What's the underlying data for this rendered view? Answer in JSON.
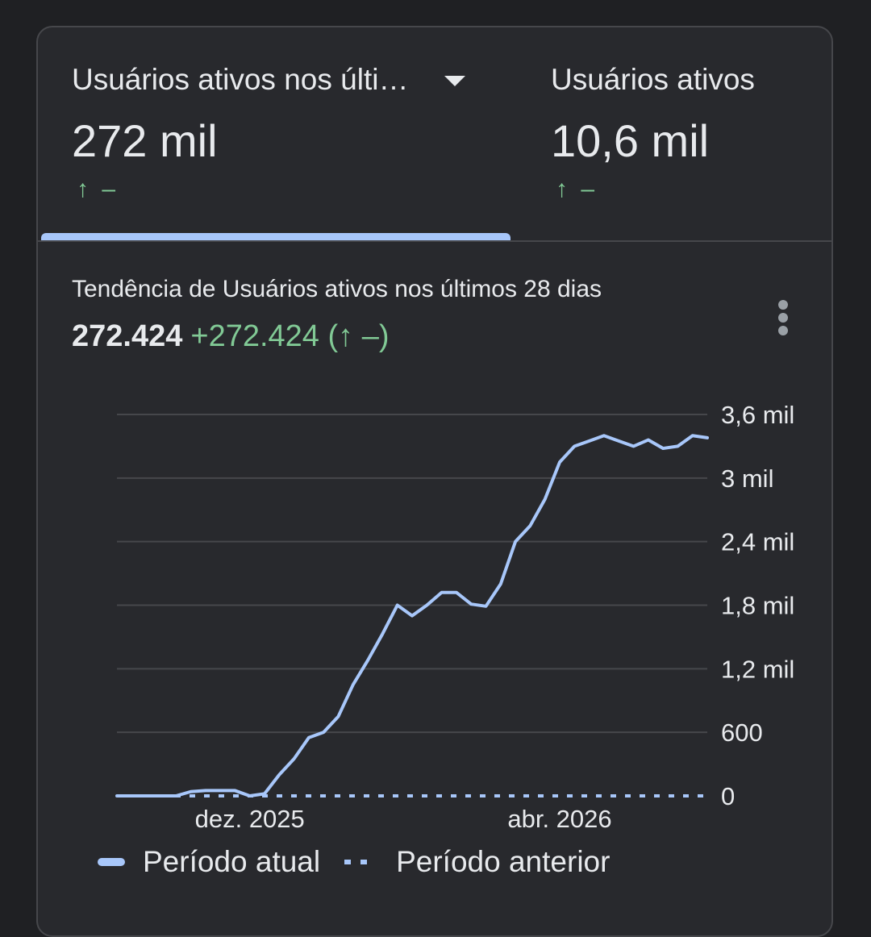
{
  "tabs": [
    {
      "title": "Usuários ativos nos últi…",
      "value": "272 mil",
      "delta": "↑ –",
      "has_dropdown": true,
      "selected": true
    },
    {
      "title": "Usuários ativos",
      "value": "10,6 mil",
      "delta": "↑ –",
      "has_dropdown": false,
      "selected": false
    }
  ],
  "chart_panel": {
    "title": "Tendência de Usuários ativos nos últimos 28 dias",
    "total": "272.424",
    "change": "+272.424 (↑ –)"
  },
  "colors": {
    "background": "#1f2023",
    "card": "#28292d",
    "accent": "#a8c7fa",
    "positive": "#81c995",
    "grid": "#46474b"
  },
  "chart_data": {
    "type": "line",
    "title": "Tendência de Usuários ativos nos últimos 28 dias",
    "y_ticks": [
      "3,6 mil",
      "3 mil",
      "2,4 mil",
      "1,8 mil",
      "1,2 mil",
      "600",
      "0"
    ],
    "y_tick_values": [
      3600,
      3000,
      2400,
      1800,
      1200,
      600,
      0
    ],
    "ylim": [
      0,
      3600
    ],
    "y_axis_side": "right",
    "x_ticks": [
      {
        "label": "dez. 2025",
        "x": 9
      },
      {
        "label": "abr. 2026",
        "x": 30
      }
    ],
    "xlim": [
      0,
      40
    ],
    "grid": true,
    "legend_position": "bottom-left",
    "series": [
      {
        "name": "Período atual",
        "style": "solid",
        "x": [
          0,
          1,
          2,
          3,
          4,
          5,
          6,
          7,
          8,
          9,
          10,
          11,
          12,
          13,
          14,
          15,
          16,
          17,
          18,
          19,
          20,
          21,
          22,
          23,
          24,
          25,
          26,
          27,
          28,
          29,
          30,
          31,
          32,
          33,
          34,
          35,
          36,
          37,
          38,
          39,
          40
        ],
        "values": [
          0,
          0,
          0,
          0,
          0,
          40,
          50,
          50,
          50,
          0,
          20,
          200,
          350,
          550,
          600,
          750,
          1050,
          1280,
          1530,
          1800,
          1700,
          1800,
          1920,
          1920,
          1810,
          1790,
          2000,
          2400,
          2550,
          2800,
          3150,
          3300,
          3350,
          3400,
          3350,
          3300,
          3360,
          3280,
          3300,
          3400,
          3380
        ]
      },
      {
        "name": "Período anterior",
        "style": "dotted",
        "x": [
          0,
          40
        ],
        "values": [
          0,
          0
        ]
      }
    ]
  }
}
